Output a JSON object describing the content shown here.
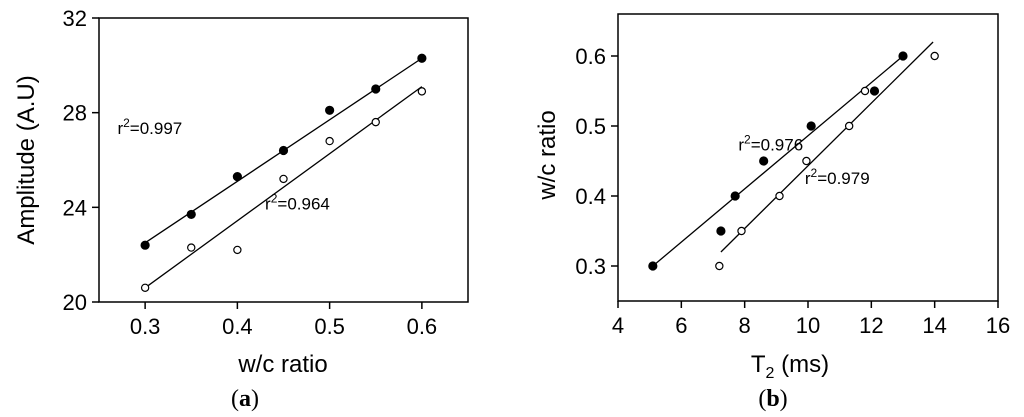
{
  "chart_data": [
    {
      "panel": "a",
      "type": "scatter",
      "xlabel": "w/c ratio",
      "ylabel": "Amplitude (A.U)",
      "xlim": [
        0.25,
        0.65
      ],
      "ylim": [
        20,
        32
      ],
      "xticks": [
        "0.3",
        "0.4",
        "0.5",
        "0.6"
      ],
      "xtick_values": [
        0.3,
        0.4,
        0.5,
        0.6
      ],
      "yticks": [
        "20",
        "24",
        "28",
        "32"
      ],
      "ytick_values": [
        20,
        24,
        28,
        32
      ],
      "grid": false,
      "series": [
        {
          "marker": "filled",
          "x": [
            0.3,
            0.35,
            0.4,
            0.45,
            0.5,
            0.55,
            0.6
          ],
          "y": [
            22.4,
            23.7,
            25.3,
            26.4,
            28.1,
            29.0,
            30.3
          ],
          "fit": [
            [
              0.3,
              22.5
            ],
            [
              0.6,
              30.3
            ]
          ],
          "annotation": {
            "prefix": "r",
            "sup": "2",
            "value": "=0.997",
            "x": 0.27,
            "y": 27.1
          }
        },
        {
          "marker": "open",
          "x": [
            0.3,
            0.35,
            0.4,
            0.45,
            0.5,
            0.55,
            0.6
          ],
          "y": [
            20.6,
            22.3,
            22.2,
            25.2,
            26.8,
            27.6,
            28.9
          ],
          "fit": [
            [
              0.3,
              20.6
            ],
            [
              0.6,
              29.1
            ]
          ],
          "annotation": {
            "prefix": "r",
            "sup": "2",
            "value": "=0.964",
            "x": 0.43,
            "y": 23.9
          }
        }
      ],
      "panel_label": {
        "open": "(",
        "letter": "a",
        "close": ")"
      }
    },
    {
      "panel": "b",
      "type": "scatter",
      "xlabel_main": "T",
      "xlabel_sub": "2",
      "xlabel_rest": " (ms)",
      "ylabel": "w/c ratio",
      "xlim": [
        4,
        16
      ],
      "ylim": [
        0.25,
        0.66
      ],
      "xticks": [
        "4",
        "6",
        "8",
        "10",
        "12",
        "14",
        "16"
      ],
      "xtick_values": [
        4,
        6,
        8,
        10,
        12,
        14,
        16
      ],
      "yticks": [
        "0.3",
        "0.4",
        "0.5",
        "0.6"
      ],
      "ytick_values": [
        0.3,
        0.4,
        0.5,
        0.6
      ],
      "grid": false,
      "series": [
        {
          "marker": "filled",
          "x": [
            5.1,
            7.25,
            7.7,
            8.6,
            10.1,
            12.1,
            13.0
          ],
          "y": [
            0.3,
            0.35,
            0.4,
            0.45,
            0.5,
            0.55,
            0.6
          ],
          "fit": [
            [
              5.1,
              0.3
            ],
            [
              13.0,
              0.6
            ]
          ],
          "annotation": {
            "prefix": "r",
            "sup": "2",
            "value": "=0.976",
            "x": 7.8,
            "y": 0.465
          }
        },
        {
          "marker": "open",
          "x": [
            7.2,
            7.9,
            9.1,
            9.95,
            11.3,
            11.8,
            14.0
          ],
          "y": [
            0.3,
            0.35,
            0.4,
            0.45,
            0.5,
            0.55,
            0.6
          ],
          "fit": [
            [
              7.25,
              0.32
            ],
            [
              13.95,
              0.62
            ]
          ],
          "annotation": {
            "prefix": "r",
            "sup": "2",
            "value": "=0.979",
            "x": 9.9,
            "y": 0.417
          }
        }
      ],
      "panel_label": {
        "open": "(",
        "letter": "b",
        "close": ")"
      }
    }
  ]
}
